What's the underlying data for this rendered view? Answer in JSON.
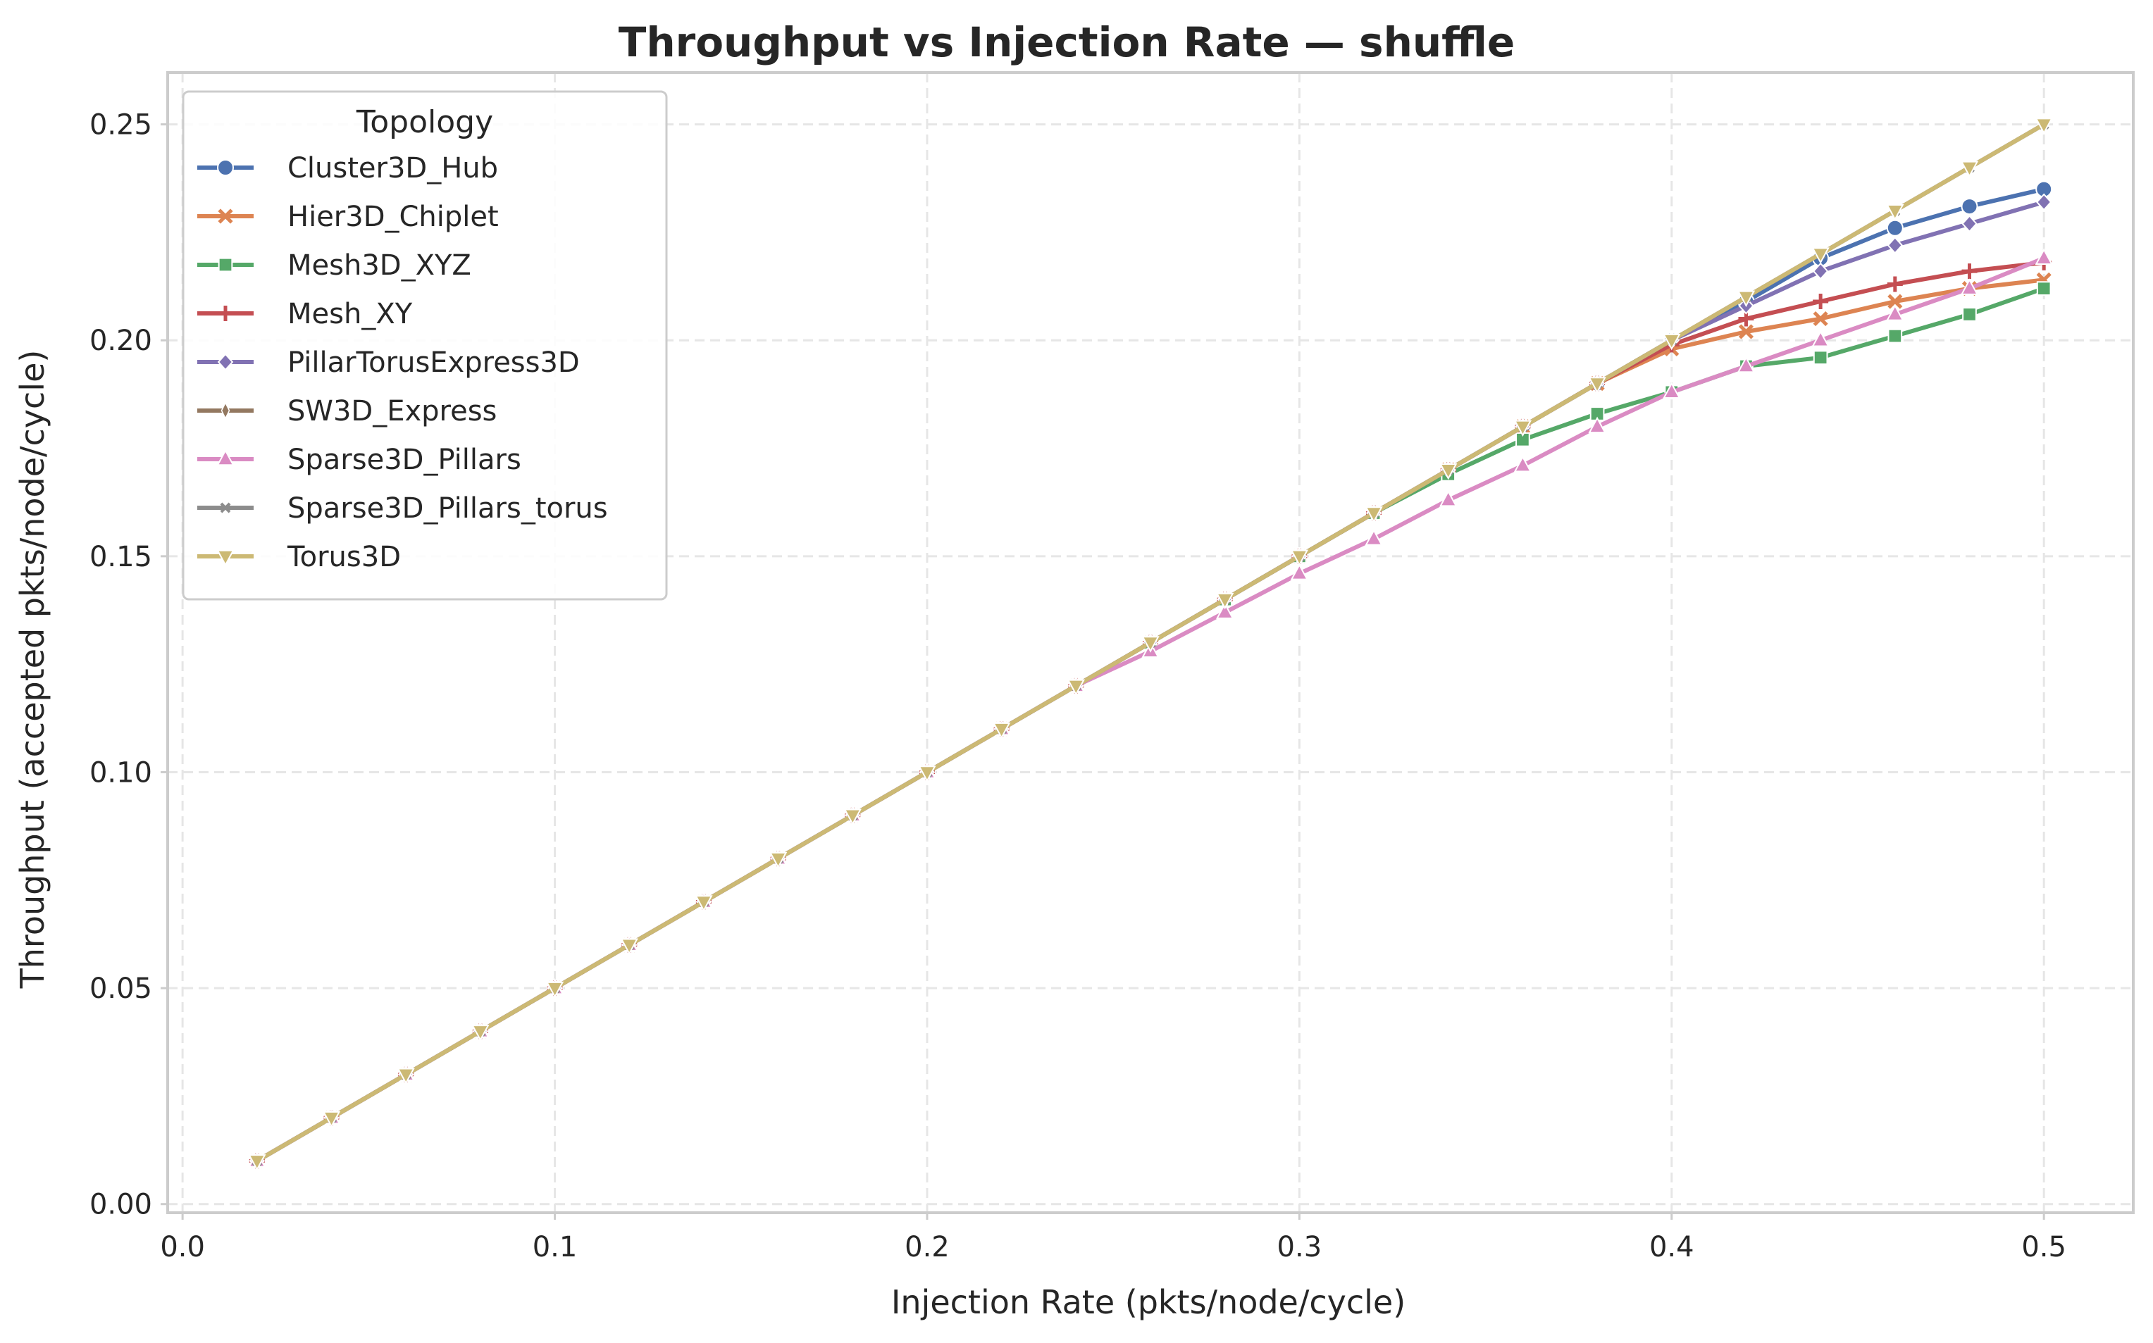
{
  "chart_data": {
    "type": "line",
    "title": "Throughput vs Injection Rate — shuffle",
    "xlabel": "Injection Rate (pkts/node/cycle)",
    "ylabel": "Throughput (accepted pkts/node/cycle)",
    "xlim": [
      -0.004,
      0.524
    ],
    "ylim": [
      -0.002,
      0.262
    ],
    "xticks": [
      0.0,
      0.1,
      0.2,
      0.3,
      0.4,
      0.5
    ],
    "xtick_labels": [
      "0.0",
      "0.1",
      "0.2",
      "0.3",
      "0.4",
      "0.5"
    ],
    "yticks": [
      0.0,
      0.05,
      0.1,
      0.15,
      0.2,
      0.25
    ],
    "ytick_labels": [
      "0.00",
      "0.05",
      "0.10",
      "0.15",
      "0.20",
      "0.25"
    ],
    "grid": true,
    "legend": {
      "title": "Topology",
      "placement": "top-left"
    },
    "x": [
      0.02,
      0.04,
      0.06,
      0.08,
      0.1,
      0.12,
      0.14,
      0.16,
      0.18,
      0.2,
      0.22,
      0.24,
      0.26,
      0.28,
      0.3,
      0.32,
      0.34,
      0.36,
      0.38,
      0.4,
      0.42,
      0.44,
      0.46,
      0.48,
      0.5
    ],
    "series": [
      {
        "name": "Cluster3D_Hub",
        "color": "#4c72b0",
        "marker": "circle",
        "values": [
          0.01,
          0.02,
          0.03,
          0.04,
          0.05,
          0.06,
          0.07,
          0.08,
          0.09,
          0.1,
          0.11,
          0.12,
          0.13,
          0.14,
          0.15,
          0.16,
          0.17,
          0.18,
          0.19,
          0.2,
          0.209,
          0.219,
          0.226,
          0.231,
          0.235
        ]
      },
      {
        "name": "Hier3D_Chiplet",
        "color": "#dd8452",
        "marker": "x",
        "values": [
          0.01,
          0.02,
          0.03,
          0.04,
          0.05,
          0.06,
          0.07,
          0.08,
          0.09,
          0.1,
          0.11,
          0.12,
          0.13,
          0.14,
          0.15,
          0.16,
          0.17,
          0.18,
          0.19,
          0.198,
          0.202,
          0.205,
          0.209,
          0.212,
          0.214
        ]
      },
      {
        "name": "Mesh3D_XYZ",
        "color": "#55a868",
        "marker": "square",
        "values": [
          0.01,
          0.02,
          0.03,
          0.04,
          0.05,
          0.06,
          0.07,
          0.08,
          0.09,
          0.1,
          0.11,
          0.12,
          0.13,
          0.14,
          0.15,
          0.16,
          0.169,
          0.177,
          0.183,
          0.188,
          0.194,
          0.196,
          0.201,
          0.206,
          0.212
        ]
      },
      {
        "name": "Mesh_XY",
        "color": "#c44e52",
        "marker": "plus",
        "values": [
          0.01,
          0.02,
          0.03,
          0.04,
          0.05,
          0.06,
          0.07,
          0.08,
          0.09,
          0.1,
          0.11,
          0.12,
          0.13,
          0.14,
          0.15,
          0.16,
          0.17,
          0.18,
          0.19,
          0.199,
          0.205,
          0.209,
          0.213,
          0.216,
          0.218
        ]
      },
      {
        "name": "PillarTorusExpress3D",
        "color": "#8172b3",
        "marker": "diamond",
        "values": [
          0.01,
          0.02,
          0.03,
          0.04,
          0.05,
          0.06,
          0.07,
          0.08,
          0.09,
          0.1,
          0.11,
          0.12,
          0.13,
          0.14,
          0.15,
          0.16,
          0.17,
          0.18,
          0.19,
          0.2,
          0.208,
          0.216,
          0.222,
          0.227,
          0.232
        ]
      },
      {
        "name": "SW3D_Express",
        "color": "#937860",
        "marker": "thin_diamond",
        "values": [
          0.01,
          0.02,
          0.03,
          0.04,
          0.05,
          0.06,
          0.07,
          0.08,
          0.09,
          0.1,
          0.11,
          0.12,
          0.13,
          0.14,
          0.15,
          0.16,
          0.17,
          0.18,
          0.19,
          0.2,
          0.21,
          0.22,
          0.23,
          0.24,
          0.25
        ]
      },
      {
        "name": "Sparse3D_Pillars",
        "color": "#da8bc3",
        "marker": "triangle-up",
        "values": [
          0.01,
          0.02,
          0.03,
          0.04,
          0.05,
          0.06,
          0.07,
          0.08,
          0.09,
          0.1,
          0.11,
          0.12,
          0.128,
          0.137,
          0.146,
          0.154,
          0.163,
          0.171,
          0.18,
          0.188,
          0.194,
          0.2,
          0.206,
          0.212,
          0.219
        ]
      },
      {
        "name": "Sparse3D_Pillars_torus",
        "color": "#8c8c8c",
        "marker": "x-small",
        "values": [
          0.01,
          0.02,
          0.03,
          0.04,
          0.05,
          0.06,
          0.07,
          0.08,
          0.09,
          0.1,
          0.11,
          0.12,
          0.13,
          0.14,
          0.15,
          0.16,
          0.17,
          0.18,
          0.19,
          0.2,
          0.21,
          0.22,
          0.23,
          0.24,
          0.25
        ]
      },
      {
        "name": "Torus3D",
        "color": "#ccb974",
        "marker": "triangle-down",
        "values": [
          0.01,
          0.02,
          0.03,
          0.04,
          0.05,
          0.06,
          0.07,
          0.08,
          0.09,
          0.1,
          0.11,
          0.12,
          0.13,
          0.14,
          0.15,
          0.16,
          0.17,
          0.18,
          0.19,
          0.2,
          0.21,
          0.22,
          0.23,
          0.24,
          0.25
        ]
      }
    ]
  }
}
